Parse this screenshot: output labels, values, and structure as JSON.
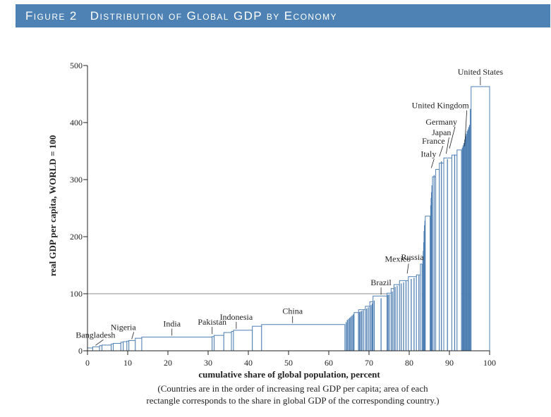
{
  "figure": {
    "label": "Figure 2",
    "title": "Distribution of Global GDP by Economy"
  },
  "caption": {
    "line1": "(Countries are in the order of increasing real GDP per capita; area of each",
    "line2": "rectangle corresponds to the share in global GDP of the corresponding country.)"
  },
  "colors": {
    "bar_outline": "#4f7fb3",
    "bar_fill": "#ffffff",
    "thin_bar": "#4f7fb3",
    "axis": "#222222",
    "reference_line": "#8c8c8c",
    "banner": "#4e82b4"
  },
  "chart_data": {
    "type": "bar",
    "variable_width": true,
    "xlabel": "cumulative share of global population, percent",
    "ylabel": "real GDP per capita, WORLD = 100",
    "xlim": [
      0,
      100
    ],
    "ylim": [
      0,
      500
    ],
    "xticks": [
      0,
      10,
      20,
      30,
      40,
      50,
      60,
      70,
      80,
      90,
      100
    ],
    "yticks": [
      0,
      100,
      200,
      300,
      400,
      500
    ],
    "reference_line": {
      "y": 100
    },
    "bars": [
      {
        "x0": 0.0,
        "x1": 1.3,
        "y": 5
      },
      {
        "x0": 1.3,
        "x1": 3.0,
        "y": 7
      },
      {
        "x0": 3.0,
        "x1": 3.6,
        "y": 9
      },
      {
        "x0": 3.6,
        "x1": 5.9,
        "y": 10
      },
      {
        "x0": 5.9,
        "x1": 6.4,
        "y": 12
      },
      {
        "x0": 6.4,
        "x1": 8.3,
        "y": 13
      },
      {
        "x0": 8.3,
        "x1": 8.9,
        "y": 15
      },
      {
        "x0": 8.9,
        "x1": 9.8,
        "y": 16
      },
      {
        "x0": 9.8,
        "x1": 10.3,
        "y": 17
      },
      {
        "x0": 10.3,
        "x1": 11.9,
        "y": 18
      },
      {
        "x0": 11.9,
        "x1": 13.5,
        "y": 22
      },
      {
        "x0": 13.5,
        "x1": 31.0,
        "y": 24
      },
      {
        "x0": 31.0,
        "x1": 31.5,
        "y": 25
      },
      {
        "x0": 31.5,
        "x1": 33.9,
        "y": 27
      },
      {
        "x0": 33.9,
        "x1": 35.8,
        "y": 32
      },
      {
        "x0": 35.8,
        "x1": 36.3,
        "y": 34
      },
      {
        "x0": 36.3,
        "x1": 41.0,
        "y": 36
      },
      {
        "x0": 41.0,
        "x1": 43.3,
        "y": 43
      },
      {
        "x0": 43.3,
        "x1": 64.0,
        "y": 46
      },
      {
        "x0": 66.3,
        "x1": 67.4,
        "y": 67
      },
      {
        "x0": 67.4,
        "x1": 69.1,
        "y": 72
      },
      {
        "x0": 69.1,
        "x1": 70.2,
        "y": 78
      },
      {
        "x0": 70.2,
        "x1": 71.0,
        "y": 86
      },
      {
        "x0": 71.0,
        "x1": 74.5,
        "y": 96
      },
      {
        "x0": 74.5,
        "x1": 75.5,
        "y": 101
      },
      {
        "x0": 75.5,
        "x1": 76.2,
        "y": 109
      },
      {
        "x0": 76.2,
        "x1": 77.6,
        "y": 116
      },
      {
        "x0": 77.6,
        "x1": 79.8,
        "y": 123
      },
      {
        "x0": 79.8,
        "x1": 81.8,
        "y": 130
      },
      {
        "x0": 81.8,
        "x1": 82.8,
        "y": 133
      },
      {
        "x0": 82.8,
        "x1": 83.2,
        "y": 152
      },
      {
        "x0": 84.0,
        "x1": 85.2,
        "y": 236
      },
      {
        "x0": 85.8,
        "x1": 86.6,
        "y": 305
      },
      {
        "x0": 86.6,
        "x1": 87.5,
        "y": 318
      },
      {
        "x0": 87.5,
        "x1": 88.6,
        "y": 329
      },
      {
        "x0": 88.6,
        "x1": 90.6,
        "y": 338
      },
      {
        "x0": 90.6,
        "x1": 91.9,
        "y": 343
      },
      {
        "x0": 91.9,
        "x1": 93.0,
        "y": 352
      },
      {
        "x0": 95.4,
        "x1": 100.0,
        "y": 463
      }
    ],
    "thin_bars": [
      {
        "x": 64.3,
        "y": 50
      },
      {
        "x": 64.6,
        "y": 54
      },
      {
        "x": 64.9,
        "y": 56
      },
      {
        "x": 65.2,
        "y": 58
      },
      {
        "x": 65.5,
        "y": 60
      },
      {
        "x": 65.8,
        "y": 62
      },
      {
        "x": 66.1,
        "y": 64
      },
      {
        "x": 67.6,
        "y": 68
      },
      {
        "x": 67.9,
        "y": 69
      },
      {
        "x": 68.2,
        "y": 70
      },
      {
        "x": 68.6,
        "y": 71
      },
      {
        "x": 69.4,
        "y": 74
      },
      {
        "x": 69.8,
        "y": 76
      },
      {
        "x": 70.5,
        "y": 80
      },
      {
        "x": 70.8,
        "y": 83
      },
      {
        "x": 71.3,
        "y": 88
      },
      {
        "x": 73.0,
        "y": 92
      },
      {
        "x": 74.7,
        "y": 98
      },
      {
        "x": 75.0,
        "y": 99
      },
      {
        "x": 75.8,
        "y": 104
      },
      {
        "x": 76.5,
        "y": 112
      },
      {
        "x": 77.0,
        "y": 114
      },
      {
        "x": 78.0,
        "y": 118
      },
      {
        "x": 78.6,
        "y": 120
      },
      {
        "x": 79.2,
        "y": 122
      },
      {
        "x": 80.5,
        "y": 126
      },
      {
        "x": 81.2,
        "y": 128
      },
      {
        "x": 82.4,
        "y": 132
      },
      {
        "x": 83.4,
        "y": 160
      },
      {
        "x": 83.5,
        "y": 175
      },
      {
        "x": 83.6,
        "y": 190
      },
      {
        "x": 83.7,
        "y": 210
      },
      {
        "x": 83.8,
        "y": 220
      },
      {
        "x": 83.9,
        "y": 228
      },
      {
        "x": 85.35,
        "y": 255
      },
      {
        "x": 85.45,
        "y": 268
      },
      {
        "x": 85.55,
        "y": 278
      },
      {
        "x": 85.65,
        "y": 290
      },
      {
        "x": 86.2,
        "y": 308
      },
      {
        "x": 88.0,
        "y": 332
      },
      {
        "x": 89.5,
        "y": 336
      },
      {
        "x": 91.3,
        "y": 344
      },
      {
        "x": 93.2,
        "y": 356
      },
      {
        "x": 93.4,
        "y": 360
      },
      {
        "x": 93.6,
        "y": 364
      },
      {
        "x": 93.8,
        "y": 370
      },
      {
        "x": 94.0,
        "y": 376
      },
      {
        "x": 94.2,
        "y": 380
      },
      {
        "x": 94.4,
        "y": 385
      },
      {
        "x": 94.6,
        "y": 388
      },
      {
        "x": 94.8,
        "y": 392
      },
      {
        "x": 95.0,
        "y": 396
      },
      {
        "x": 95.2,
        "y": 424
      }
    ],
    "annotations": [
      {
        "text": "Bangladesh",
        "x": 2.0,
        "y": 7,
        "anchor": "middle",
        "lx": 11,
        "ly": 7
      },
      {
        "text": "Nigeria",
        "x": 11.0,
        "y": 18,
        "anchor": "start",
        "lx": 3,
        "ly": 9
      },
      {
        "text": "India",
        "x": 21.0,
        "y": 24,
        "anchor": "start",
        "lx": 0,
        "ly": 9
      },
      {
        "text": "Pakistan",
        "x": 31.0,
        "y": 27,
        "anchor": "start",
        "lx": 0,
        "ly": 9
      },
      {
        "text": "Indonesia",
        "x": 37.0,
        "y": 36,
        "anchor": "start",
        "lx": 0,
        "ly": 9
      },
      {
        "text": "China",
        "x": 51.0,
        "y": 46,
        "anchor": "start",
        "lx": 0,
        "ly": 9
      },
      {
        "text": "Brazil",
        "x": 73.0,
        "y": 96,
        "anchor": "start",
        "lx": 0,
        "ly": 9
      },
      {
        "text": "Mexico",
        "x": 79.5,
        "y": 133,
        "anchor": "start",
        "lx": 2,
        "ly": 13
      },
      {
        "text": "Russia",
        "x": 80.8,
        "y": 152,
        "anchor": "start",
        "lx": 0,
        "ly": 0
      },
      {
        "text": "Italy",
        "x": 85.5,
        "y": 318,
        "anchor": "start",
        "lx": 4,
        "ly": 12
      },
      {
        "text": "France",
        "x": 87.5,
        "y": 338,
        "anchor": "start",
        "lx": 5,
        "ly": 14
      },
      {
        "text": "Japan",
        "x": 89.2,
        "y": 343,
        "anchor": "start",
        "lx": 4,
        "ly": 22
      },
      {
        "text": "Germany",
        "x": 90.0,
        "y": 352,
        "anchor": "start",
        "lx": 8,
        "ly": 30
      },
      {
        "text": "United Kingdom",
        "x": 93.8,
        "y": 356,
        "anchor": "start",
        "lx": 3,
        "ly": 50
      },
      {
        "text": "United States",
        "x": 97.7,
        "y": 463,
        "anchor": "start",
        "lx": 0,
        "ly": 11
      }
    ]
  }
}
